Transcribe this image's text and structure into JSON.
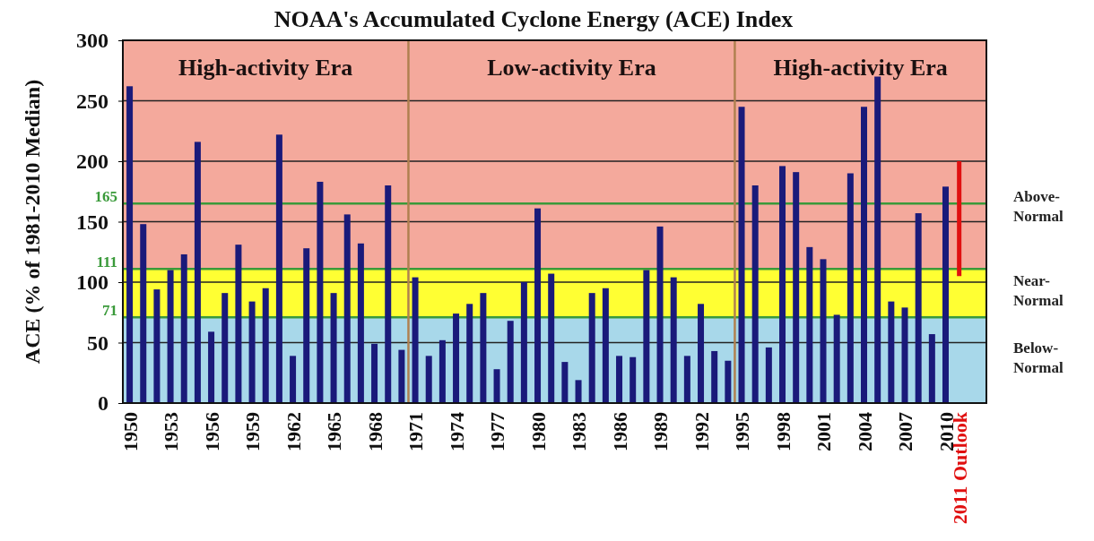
{
  "chart_data": {
    "type": "bar",
    "title": "NOAA's Accumulated Cyclone Energy (ACE) Index",
    "ylabel": "ACE (% of 1981-2010 Median)",
    "x": [
      1950,
      1951,
      1952,
      1953,
      1954,
      1955,
      1956,
      1957,
      1958,
      1959,
      1960,
      1961,
      1962,
      1963,
      1964,
      1965,
      1966,
      1967,
      1968,
      1969,
      1970,
      1971,
      1972,
      1973,
      1974,
      1975,
      1976,
      1977,
      1978,
      1979,
      1980,
      1981,
      1982,
      1983,
      1984,
      1985,
      1986,
      1987,
      1988,
      1989,
      1990,
      1991,
      1992,
      1993,
      1994,
      1995,
      1996,
      1997,
      1998,
      1999,
      2000,
      2001,
      2002,
      2003,
      2004,
      2005,
      2006,
      2007,
      2008,
      2009,
      2010,
      2011
    ],
    "values": [
      262,
      148,
      94,
      110,
      123,
      216,
      59,
      91,
      131,
      84,
      95,
      222,
      39,
      128,
      183,
      91,
      156,
      132,
      49,
      180,
      44,
      104,
      39,
      52,
      74,
      82,
      91,
      28,
      68,
      100,
      161,
      107,
      34,
      19,
      91,
      95,
      39,
      38,
      110,
      146,
      104,
      39,
      82,
      43,
      35,
      245,
      180,
      46,
      196,
      191,
      129,
      119,
      73,
      190,
      245,
      270,
      84,
      79,
      157,
      57,
      179,
      95
    ],
    "base": [
      0,
      0,
      0,
      0,
      0,
      0,
      0,
      0,
      0,
      0,
      0,
      0,
      0,
      0,
      0,
      0,
      0,
      0,
      0,
      0,
      0,
      0,
      0,
      0,
      0,
      0,
      0,
      0,
      0,
      0,
      0,
      0,
      0,
      0,
      0,
      0,
      0,
      0,
      0,
      0,
      0,
      0,
      0,
      0,
      0,
      0,
      0,
      0,
      0,
      0,
      0,
      0,
      0,
      0,
      0,
      0,
      0,
      0,
      0,
      0,
      0,
      105
    ],
    "colors": [
      "#1a1a7a",
      "#1a1a7a",
      "#1a1a7a",
      "#1a1a7a",
      "#1a1a7a",
      "#1a1a7a",
      "#1a1a7a",
      "#1a1a7a",
      "#1a1a7a",
      "#1a1a7a",
      "#1a1a7a",
      "#1a1a7a",
      "#1a1a7a",
      "#1a1a7a",
      "#1a1a7a",
      "#1a1a7a",
      "#1a1a7a",
      "#1a1a7a",
      "#1a1a7a",
      "#1a1a7a",
      "#1a1a7a",
      "#1a1a7a",
      "#1a1a7a",
      "#1a1a7a",
      "#1a1a7a",
      "#1a1a7a",
      "#1a1a7a",
      "#1a1a7a",
      "#1a1a7a",
      "#1a1a7a",
      "#1a1a7a",
      "#1a1a7a",
      "#1a1a7a",
      "#1a1a7a",
      "#1a1a7a",
      "#1a1a7a",
      "#1a1a7a",
      "#1a1a7a",
      "#1a1a7a",
      "#1a1a7a",
      "#1a1a7a",
      "#1a1a7a",
      "#1a1a7a",
      "#1a1a7a",
      "#1a1a7a",
      "#1a1a7a",
      "#1a1a7a",
      "#1a1a7a",
      "#1a1a7a",
      "#1a1a7a",
      "#1a1a7a",
      "#1a1a7a",
      "#1a1a7a",
      "#1a1a7a",
      "#1a1a7a",
      "#1a1a7a",
      "#1a1a7a",
      "#1a1a7a",
      "#1a1a7a",
      "#1a1a7a",
      "#1a1a7a",
      "#e01010"
    ],
    "xlim": [
      1949.5,
      2013
    ],
    "xticks": [
      1950,
      1953,
      1956,
      1959,
      1962,
      1965,
      1968,
      1971,
      1974,
      1977,
      1980,
      1983,
      1986,
      1989,
      1992,
      1995,
      1998,
      2001,
      2004,
      2007,
      2010,
      {
        "value": 2011,
        "label": "2011 Outlook"
      }
    ],
    "ylim": [
      0,
      300
    ],
    "yticks": [
      0,
      50,
      100,
      150,
      200,
      250,
      300
    ],
    "grid": "y",
    "bands": [
      {
        "axis": "y",
        "from": 0,
        "to": 71,
        "label": "Below-Normal",
        "color": "#a8d8ea"
      },
      {
        "axis": "y",
        "from": 71,
        "to": 111,
        "label": "Near-Normal",
        "color": "#ffff33"
      },
      {
        "axis": "y",
        "from": 111,
        "to": 300,
        "label": "Above-Normal",
        "color": "#f4a99c"
      }
    ],
    "ref_lines": [
      {
        "axis": "y",
        "value": 71,
        "label": "71",
        "color": "#3a9a3a"
      },
      {
        "axis": "y",
        "value": 111,
        "label": "111",
        "color": "#3a9a3a"
      },
      {
        "axis": "y",
        "value": 165,
        "label": "165",
        "color": "#3a9a3a"
      },
      {
        "axis": "x",
        "value": 1970.5,
        "color": "#b08050"
      },
      {
        "axis": "x",
        "value": 1994.5,
        "color": "#b08050"
      }
    ],
    "annotations": [
      "High-activity Era",
      "Low-activity Era",
      "High-activity Era"
    ]
  }
}
